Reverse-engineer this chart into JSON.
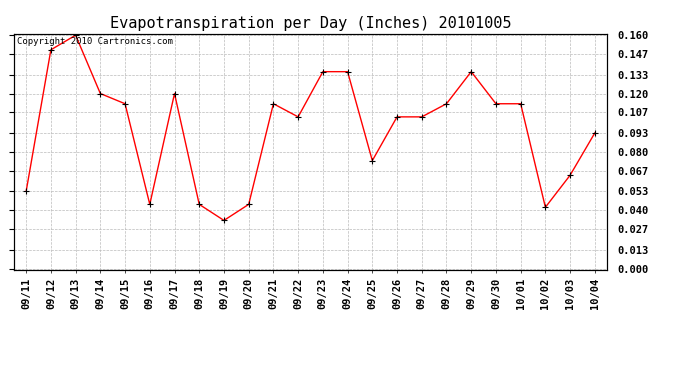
{
  "title": "Evapotranspiration per Day (Inches) 20101005",
  "copyright": "Copyright 2010 Cartronics.com",
  "x_labels": [
    "09/11",
    "09/12",
    "09/13",
    "09/14",
    "09/15",
    "09/16",
    "09/17",
    "09/18",
    "09/19",
    "09/20",
    "09/21",
    "09/22",
    "09/23",
    "09/24",
    "09/25",
    "09/26",
    "09/27",
    "09/28",
    "09/29",
    "09/30",
    "10/01",
    "10/02",
    "10/03",
    "10/04"
  ],
  "y_values": [
    0.053,
    0.15,
    0.16,
    0.12,
    0.113,
    0.044,
    0.12,
    0.044,
    0.033,
    0.044,
    0.113,
    0.104,
    0.135,
    0.135,
    0.074,
    0.104,
    0.104,
    0.113,
    0.135,
    0.113,
    0.113,
    0.042,
    0.064,
    0.093
  ],
  "y_ticks": [
    0.0,
    0.013,
    0.027,
    0.04,
    0.053,
    0.067,
    0.08,
    0.093,
    0.107,
    0.12,
    0.133,
    0.147,
    0.16
  ],
  "line_color": "#ff0000",
  "marker": "+",
  "marker_color": "#000000",
  "background_color": "#ffffff",
  "grid_color": "#bbbbbb",
  "title_fontsize": 11,
  "copyright_fontsize": 6.5,
  "tick_fontsize": 7.5,
  "y_min": 0.0,
  "y_max": 0.16
}
